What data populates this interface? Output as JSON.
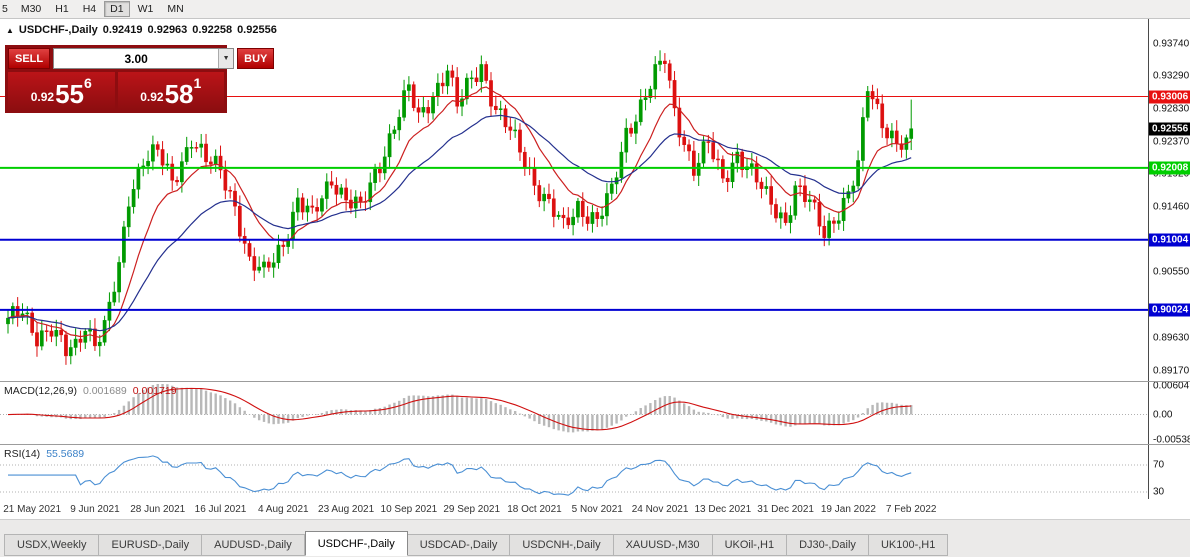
{
  "toolbar": {
    "timeframes": [
      {
        "label": "5",
        "active": false
      },
      {
        "label": "M30",
        "active": false
      },
      {
        "label": "H1",
        "active": false
      },
      {
        "label": "H4",
        "active": false
      },
      {
        "label": "D1",
        "active": true
      },
      {
        "label": "W1",
        "active": false
      },
      {
        "label": "MN",
        "active": false
      }
    ]
  },
  "header": {
    "expand_icon": "▲",
    "symbol": "USDCHF-,Daily",
    "open": "0.92419",
    "high": "0.92963",
    "low": "0.92258",
    "close": "0.92556"
  },
  "trade": {
    "sell_label": "SELL",
    "buy_label": "BUY",
    "volume": "3.00",
    "dropdown_icon": "▼",
    "sell_price_prefix": "0.92",
    "sell_price_big": "55",
    "sell_price_sup": "6",
    "buy_price_prefix": "0.92",
    "buy_price_big": "58",
    "buy_price_sup": "1"
  },
  "macd_panel": {
    "name": "MACD(12,26,9)",
    "value_main": "0.001689",
    "value_signal": "0.001719",
    "axis_top": "0.00604",
    "axis_zero": "0.00",
    "axis_bottom": "-0.00538"
  },
  "rsi_panel": {
    "name": "RSI(14)",
    "value": "55.5689",
    "axis_top": "70",
    "axis_bottom": "30"
  },
  "tabs": {
    "active_index": 3,
    "items": [
      {
        "label": "USDX,Weekly"
      },
      {
        "label": "EURUSD-,Daily"
      },
      {
        "label": "AUDUSD-,Daily"
      },
      {
        "label": "USDCHF-,Daily"
      },
      {
        "label": "USDCAD-,Daily"
      },
      {
        "label": "USDCNH-,Daily"
      },
      {
        "label": "XAUUSD-,M30"
      },
      {
        "label": "UKOil-,H1"
      },
      {
        "label": "DJ30-,Daily"
      },
      {
        "label": "UK100-,H1"
      }
    ]
  },
  "chart_data": {
    "type": "candlestick",
    "symbol": "USDCHF",
    "timeframe": "Daily",
    "candles_count": 188,
    "price_view": {
      "top": 0.9374,
      "bottom": 0.8917
    },
    "price_anchors": [
      [
        0,
        0.8985
      ],
      [
        3,
        0.9
      ],
      [
        6,
        0.8968
      ],
      [
        9,
        0.8975
      ],
      [
        12,
        0.8942
      ],
      [
        14,
        0.8952
      ],
      [
        16,
        0.8985
      ],
      [
        18,
        0.8958
      ],
      [
        20,
        0.8975
      ],
      [
        23,
        0.906
      ],
      [
        25,
        0.916
      ],
      [
        28,
        0.9215
      ],
      [
        31,
        0.9222
      ],
      [
        34,
        0.9178
      ],
      [
        38,
        0.9245
      ],
      [
        41,
        0.921
      ],
      [
        44,
        0.9196
      ],
      [
        47,
        0.915
      ],
      [
        50,
        0.9068
      ],
      [
        53,
        0.9052
      ],
      [
        57,
        0.9098
      ],
      [
        60,
        0.9155
      ],
      [
        63,
        0.913
      ],
      [
        67,
        0.9188
      ],
      [
        70,
        0.9158
      ],
      [
        73,
        0.9142
      ],
      [
        77,
        0.9208
      ],
      [
        80,
        0.9262
      ],
      [
        83,
        0.931
      ],
      [
        85,
        0.9268
      ],
      [
        88,
        0.9305
      ],
      [
        91,
        0.934
      ],
      [
        93,
        0.9285
      ],
      [
        96,
        0.9325
      ],
      [
        98,
        0.9345
      ],
      [
        101,
        0.9282
      ],
      [
        104,
        0.925
      ],
      [
        107,
        0.9212
      ],
      [
        109,
        0.9182
      ],
      [
        112,
        0.915
      ],
      [
        115,
        0.9115
      ],
      [
        118,
        0.9148
      ],
      [
        122,
        0.9128
      ],
      [
        125,
        0.9165
      ],
      [
        128,
        0.925
      ],
      [
        131,
        0.929
      ],
      [
        134,
        0.933
      ],
      [
        136,
        0.9352
      ],
      [
        138,
        0.928
      ],
      [
        140,
        0.924
      ],
      [
        142,
        0.92
      ],
      [
        145,
        0.9232
      ],
      [
        148,
        0.9185
      ],
      [
        151,
        0.9222
      ],
      [
        154,
        0.9192
      ],
      [
        157,
        0.916
      ],
      [
        161,
        0.9128
      ],
      [
        163,
        0.9172
      ],
      [
        166,
        0.915
      ],
      [
        169,
        0.9112
      ],
      [
        172,
        0.9142
      ],
      [
        174,
        0.9162
      ],
      [
        176,
        0.92
      ],
      [
        178,
        0.9315
      ],
      [
        180,
        0.9285
      ],
      [
        182,
        0.9255
      ],
      [
        184,
        0.9235
      ],
      [
        186,
        0.9228
      ],
      [
        187,
        0.92556
      ]
    ],
    "last_candle": {
      "open": 0.92419,
      "high": 0.92963,
      "low": 0.92258,
      "close": 0.92556
    },
    "axis_ticks": [
      0.9374,
      0.9329,
      0.9283,
      0.9237,
      0.9192,
      0.9146,
      0.9055,
      0.8963,
      0.8917
    ],
    "levels": [
      {
        "value": 0.93006,
        "label": "0.93006",
        "color": "#e81010",
        "width": 1
      },
      {
        "value": 0.92008,
        "label": "0.92008",
        "color": "#00ce00",
        "width": 2
      },
      {
        "value": 0.91004,
        "label": "0.91004",
        "color": "#0000d2",
        "width": 2
      },
      {
        "value": 0.90024,
        "label": "0.90024",
        "color": "#0000d2",
        "width": 2
      }
    ],
    "current_price": {
      "value": 0.92556,
      "label": "0.92556",
      "color": "#000000"
    },
    "x_labels": [
      {
        "index": 5,
        "label": "21 May 2021"
      },
      {
        "index": 18,
        "label": "9 Jun 2021"
      },
      {
        "index": 31,
        "label": "28 Jun 2021"
      },
      {
        "index": 44,
        "label": "16 Jul 2021"
      },
      {
        "index": 57,
        "label": "4 Aug 2021"
      },
      {
        "index": 70,
        "label": "23 Aug 2021"
      },
      {
        "index": 83,
        "label": "10 Sep 2021"
      },
      {
        "index": 96,
        "label": "29 Sep 2021"
      },
      {
        "index": 109,
        "label": "18 Oct 2021"
      },
      {
        "index": 122,
        "label": "5 Nov 2021"
      },
      {
        "index": 135,
        "label": "24 Nov 2021"
      },
      {
        "index": 148,
        "label": "13 Dec 2021"
      },
      {
        "index": 161,
        "label": "31 Dec 2021"
      },
      {
        "index": 174,
        "label": "19 Jan 2022"
      },
      {
        "index": 187,
        "label": "7 Feb 2022"
      }
    ],
    "indicators": {
      "macd": [
        12,
        26,
        9
      ],
      "rsi": 14,
      "ma_fast_period": 12,
      "ma_slow_period": 30
    },
    "macd_view": {
      "top": 0.00604,
      "bottom": -0.00538
    },
    "rsi_levels": [
      70,
      30
    ],
    "colors": {
      "up": "#009a00",
      "down": "#dc1010",
      "ma_fast": "#cc2020",
      "ma_slow": "#24308e",
      "macd_hist": "#b8b8b8",
      "macd_signal": "#d01010",
      "rsi": "#4a8fd4",
      "grid_dotted": "#b0b0b0"
    }
  }
}
